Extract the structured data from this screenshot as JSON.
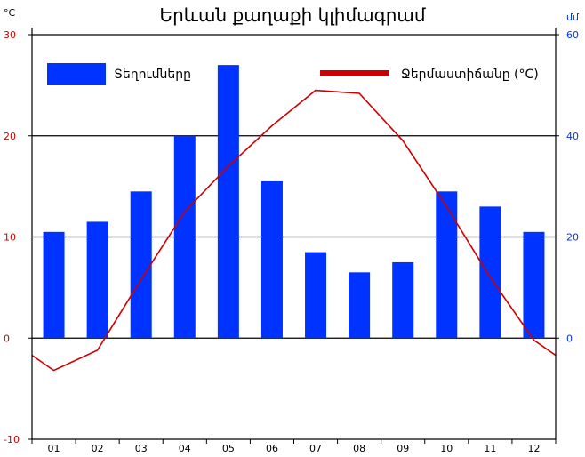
{
  "chart_data": {
    "type": "bar",
    "title": "Երևան քաղաքի կլիմագրամ",
    "categories": [
      "01",
      "02",
      "03",
      "04",
      "05",
      "06",
      "07",
      "08",
      "09",
      "10",
      "11",
      "12"
    ],
    "series": [
      {
        "name": "Տեղումները",
        "chart": "bar",
        "axis": "right",
        "values": [
          21,
          23,
          29,
          40,
          54,
          31,
          17,
          13,
          15,
          29,
          26,
          21
        ],
        "color": "#0033ff"
      },
      {
        "name": "Ջերմաստիճանը (°C)",
        "chart": "line",
        "axis": "left",
        "values": [
          -3.2,
          -1.2,
          5.8,
          12.5,
          17.0,
          21.0,
          24.5,
          24.2,
          19.5,
          13.0,
          6.0,
          -0.2
        ],
        "edge_values": [
          -1.7,
          -1.7
        ],
        "color": "#cc0000"
      }
    ],
    "left_axis": {
      "unit": "°C",
      "ylim": [
        -10,
        30
      ],
      "ticks": [
        "-10",
        "0",
        "10",
        "20",
        "30"
      ]
    },
    "right_axis": {
      "unit": "մմ",
      "ylim": [
        -20,
        60
      ],
      "ticks": [
        "0",
        "20",
        "40",
        "60"
      ]
    },
    "grid": true,
    "legend": "top"
  }
}
